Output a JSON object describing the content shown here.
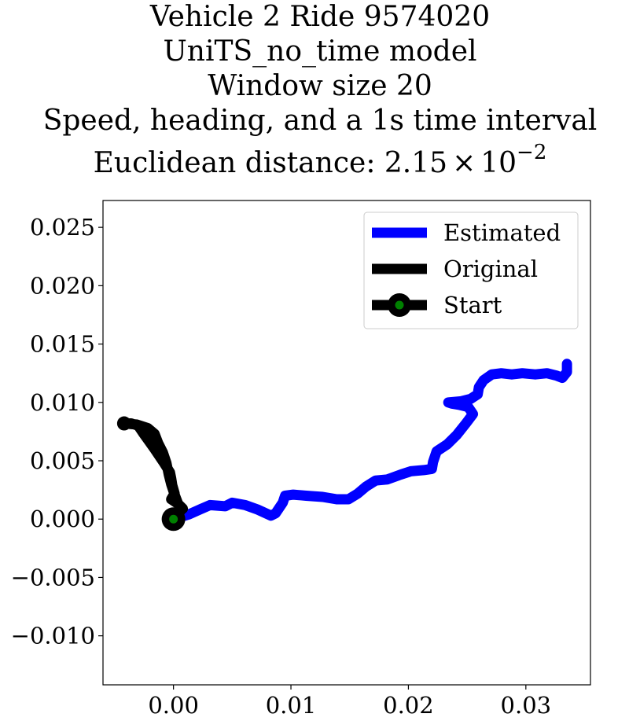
{
  "chart_data": {
    "type": "line",
    "title_lines": [
      "Vehicle 2 Ride 9574020",
      "UniTS_no_time model",
      "Window size 20",
      "Speed, heading, and a 1s time interval"
    ],
    "title_metric": {
      "label": "Euclidean distance: ",
      "mantissa": "2.15",
      "times": "×",
      "base": "10",
      "exponent": "−2"
    },
    "xlabel": "",
    "ylabel": "",
    "xlim": [
      -0.006,
      0.0355
    ],
    "ylim": [
      -0.0142,
      0.0273
    ],
    "xticks": [
      {
        "value": 0.0,
        "label": "0.00"
      },
      {
        "value": 0.01,
        "label": "0.01"
      },
      {
        "value": 0.02,
        "label": "0.02"
      },
      {
        "value": 0.03,
        "label": "0.03"
      }
    ],
    "yticks": [
      {
        "value": 0.025,
        "label": "0.025"
      },
      {
        "value": 0.02,
        "label": "0.020"
      },
      {
        "value": 0.015,
        "label": "0.015"
      },
      {
        "value": 0.01,
        "label": "0.010"
      },
      {
        "value": 0.005,
        "label": "0.005"
      },
      {
        "value": 0.0,
        "label": "0.000"
      },
      {
        "value": -0.005,
        "label": "−0.005"
      },
      {
        "value": -0.01,
        "label": "−0.010"
      }
    ],
    "legend_position": "top-right",
    "series": [
      {
        "name": "Estimated",
        "color": "#0000ff",
        "points": [
          [
            0.0,
            0.0
          ],
          [
            0.0013,
            0.0004
          ],
          [
            0.0022,
            0.0008
          ],
          [
            0.0031,
            0.0012
          ],
          [
            0.0044,
            0.0011
          ],
          [
            0.005,
            0.0014
          ],
          [
            0.0061,
            0.0012
          ],
          [
            0.0072,
            0.0008
          ],
          [
            0.0083,
            0.0003
          ],
          [
            0.0087,
            0.0005
          ],
          [
            0.0093,
            0.0014
          ],
          [
            0.0095,
            0.002
          ],
          [
            0.0102,
            0.0021
          ],
          [
            0.0113,
            0.002
          ],
          [
            0.0127,
            0.0019
          ],
          [
            0.0139,
            0.0017
          ],
          [
            0.0149,
            0.0017
          ],
          [
            0.0157,
            0.0022
          ],
          [
            0.0164,
            0.0028
          ],
          [
            0.0172,
            0.0033
          ],
          [
            0.0182,
            0.0034
          ],
          [
            0.0193,
            0.0038
          ],
          [
            0.0202,
            0.0041
          ],
          [
            0.0213,
            0.0042
          ],
          [
            0.022,
            0.0043
          ],
          [
            0.0221,
            0.0049
          ],
          [
            0.0224,
            0.0058
          ],
          [
            0.0233,
            0.0064
          ],
          [
            0.0241,
            0.0072
          ],
          [
            0.0249,
            0.0082
          ],
          [
            0.0255,
            0.009
          ],
          [
            0.0251,
            0.0096
          ],
          [
            0.0243,
            0.0098
          ],
          [
            0.0237,
            0.0099
          ],
          [
            0.0234,
            0.01
          ],
          [
            0.0245,
            0.0101
          ],
          [
            0.0253,
            0.0103
          ],
          [
            0.0259,
            0.0107
          ],
          [
            0.026,
            0.0113
          ],
          [
            0.0264,
            0.0119
          ],
          [
            0.0271,
            0.0124
          ],
          [
            0.0279,
            0.0125
          ],
          [
            0.0288,
            0.0124
          ],
          [
            0.0297,
            0.0125
          ],
          [
            0.0308,
            0.0124
          ],
          [
            0.0318,
            0.0125
          ],
          [
            0.0326,
            0.0123
          ],
          [
            0.0331,
            0.0121
          ],
          [
            0.0335,
            0.0126
          ],
          [
            0.0335,
            0.0133
          ]
        ]
      },
      {
        "name": "Original",
        "color": "#000000",
        "points": [
          [
            0.0,
            0.0
          ],
          [
            0.0003,
            0.0005
          ],
          [
            0.0008,
            0.0009
          ],
          [
            0.0004,
            0.0013
          ],
          [
            -0.0002,
            0.0017
          ],
          [
            0.0001,
            0.0022
          ],
          [
            -0.0001,
            0.0029
          ],
          [
            -0.0002,
            0.0035
          ],
          [
            -0.0003,
            0.004
          ],
          [
            -0.0008,
            0.0048
          ],
          [
            -0.0012,
            0.0054
          ],
          [
            -0.0016,
            0.006
          ],
          [
            -0.0021,
            0.0067
          ],
          [
            -0.0026,
            0.0074
          ],
          [
            -0.003,
            0.008
          ],
          [
            -0.0036,
            0.0082
          ],
          [
            -0.0042,
            0.0082
          ],
          [
            -0.0031,
            0.0081
          ],
          [
            -0.0022,
            0.0078
          ],
          [
            -0.0016,
            0.0073
          ],
          [
            -0.0013,
            0.0065
          ],
          [
            -0.0009,
            0.0057
          ],
          [
            -0.0006,
            0.0048
          ],
          [
            -0.0004,
            0.0038
          ],
          [
            -0.0002,
            0.003
          ],
          [
            0.0001,
            0.0021
          ],
          [
            0.0004,
            0.0013
          ],
          [
            0.0006,
            0.0007
          ],
          [
            0.0003,
            0.0003
          ],
          [
            0.0,
            0.0
          ]
        ]
      }
    ],
    "start": {
      "name": "Start",
      "point": [
        0.0,
        0.0
      ],
      "marker_fill": "#008000",
      "marker_edge": "#000000"
    }
  }
}
